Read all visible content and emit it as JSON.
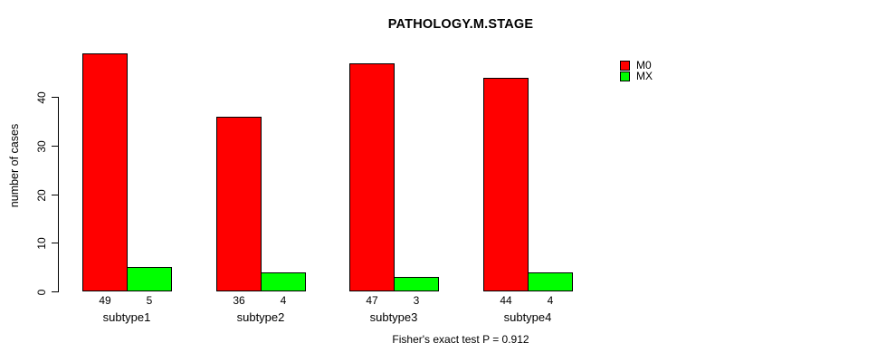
{
  "title": "PATHOLOGY.M.STAGE",
  "chart_data": {
    "type": "bar",
    "title": "PATHOLOGY.M.STAGE",
    "categories": [
      "subtype1",
      "subtype2",
      "subtype3",
      "subtype4"
    ],
    "series": [
      {
        "name": "M0",
        "color": "#ff0000",
        "values": [
          49,
          36,
          47,
          44
        ]
      },
      {
        "name": "MX",
        "color": "#00ff00",
        "values": [
          5,
          4,
          3,
          4
        ]
      }
    ],
    "ylabel": "number of cases",
    "xlabel": "",
    "yticks": [
      0,
      10,
      20,
      30,
      40
    ],
    "ylim": [
      0,
      49
    ],
    "bar_value_labels_shown": true,
    "grid": false,
    "legend": {
      "position": "right",
      "entries": [
        "M0",
        "MX"
      ]
    },
    "caption": "Fisher's exact test P = 0.912"
  },
  "colors": {
    "m0": "#ff0000",
    "mx": "#00ff00",
    "axis": "#000000",
    "background": "#ffffff"
  }
}
